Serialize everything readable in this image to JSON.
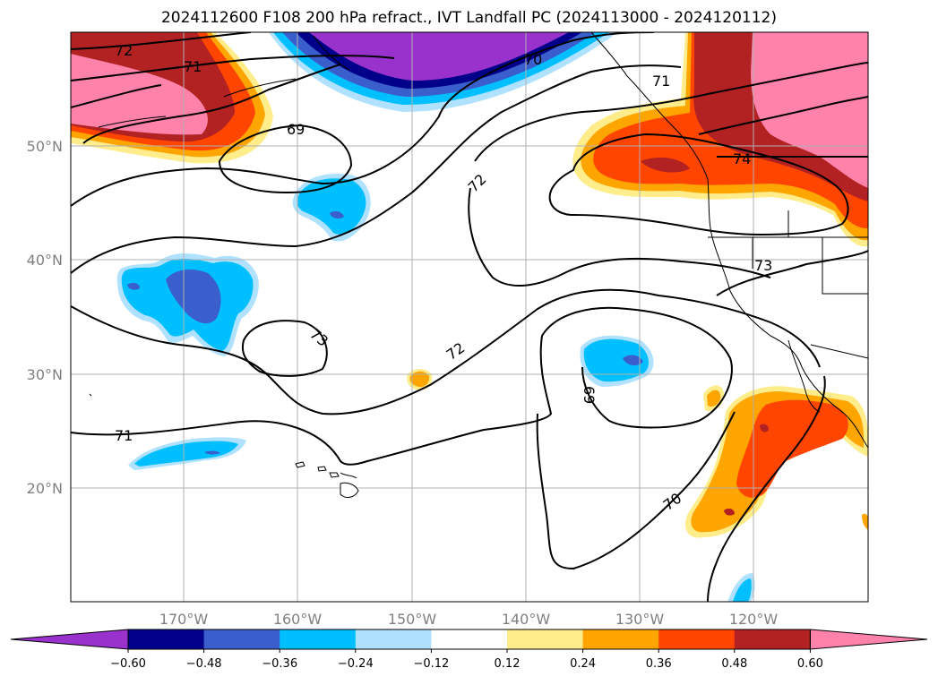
{
  "title": "2024112600 F108 200 hPa refract., IVT Landfall PC (2024113000 - 2024120112)",
  "lat_labels": [
    "50°N",
    "40°N",
    "30°N",
    "20°N"
  ],
  "lon_labels": [
    "170°W",
    "160°W",
    "150°W",
    "140°W",
    "130°W",
    "120°W"
  ],
  "contour_labels": [
    "72",
    "71",
    "69",
    "70",
    "71",
    "72",
    "74",
    "73",
    "73",
    "72",
    "69",
    "71",
    "70"
  ],
  "colorbar": {
    "ticks": [
      "−0.60",
      "−0.48",
      "−0.36",
      "−0.24",
      "−0.12",
      "0.12",
      "0.24",
      "0.36",
      "0.48",
      "0.60"
    ],
    "colors": [
      "#9932cc",
      "#00008b",
      "#3a5fcd",
      "#00bfff",
      "#b0e2ff",
      "#ffffff",
      "#ffec8b",
      "#ffa500",
      "#ff4500",
      "#b22222",
      "#ff82ab"
    ]
  }
}
